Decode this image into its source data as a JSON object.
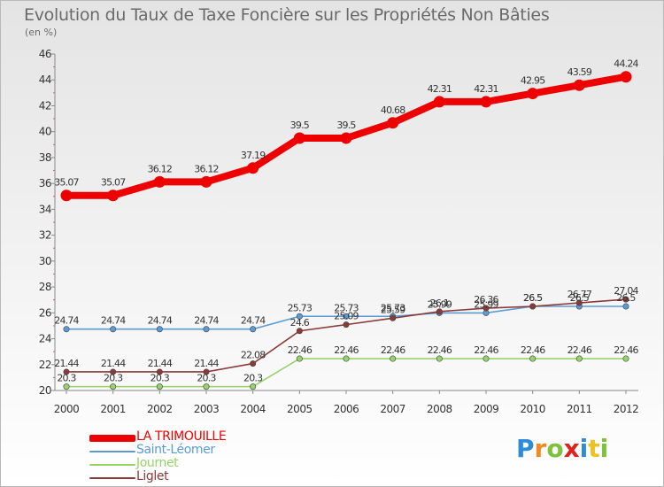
{
  "title": "Evolution du Taux de Taxe Foncière sur les Propriétés Non Bâties",
  "unit_label": "(en %)",
  "logo": {
    "text": "Proxiti",
    "letters": [
      "P",
      "r",
      "o",
      "x",
      "i",
      "t",
      "i"
    ],
    "colors": [
      "#2e8bd6",
      "#f08a24",
      "#7cc23a",
      "#e0221d",
      "#2e8bd6",
      "#f0c020",
      "#7cc23a"
    ]
  },
  "chart_data": {
    "type": "line",
    "title": "Evolution du Taux de Taxe Foncière sur les Propriétés Non Bâties",
    "ylabel": "(en %)",
    "xlabel": "",
    "x": [
      "2000",
      "2001",
      "2002",
      "2003",
      "2004",
      "2005",
      "2006",
      "2007",
      "2008",
      "2009",
      "2010",
      "2011",
      "2012"
    ],
    "ylim": [
      20,
      46
    ],
    "yticks": [
      20,
      22,
      24,
      26,
      28,
      30,
      32,
      34,
      36,
      38,
      40,
      42,
      44,
      46
    ],
    "grid": false,
    "legend_position": "bottom-left",
    "series": [
      {
        "name": "LA TRIMOUILLE",
        "color": "#ee0000",
        "style": "thick",
        "values": [
          35.07,
          35.07,
          36.12,
          36.12,
          37.19,
          39.5,
          39.5,
          40.68,
          42.31,
          42.31,
          42.95,
          43.59,
          44.24
        ],
        "labels": [
          "35.07",
          "35.07",
          "36.12",
          "36.12",
          "37.19",
          "39.5",
          "39.5",
          "40.68",
          "42.31",
          "42.31",
          "42.95",
          "43.59",
          "44.24"
        ]
      },
      {
        "name": "Saint-Léomer",
        "color": "#5b9bd5",
        "style": "thin",
        "values": [
          24.74,
          24.74,
          24.74,
          24.74,
          24.74,
          25.73,
          25.73,
          25.73,
          25.99,
          25.99,
          26.5,
          26.5,
          26.5
        ],
        "labels": [
          "24.74",
          "24.74",
          "24.74",
          "24.74",
          "24.74",
          "25.73",
          "25.73",
          "25.73",
          "25.99",
          "25.99",
          "26.5",
          "26.5",
          "26.5"
        ]
      },
      {
        "name": "Journet",
        "color": "#96d46a",
        "style": "thin",
        "values": [
          20.3,
          20.3,
          20.3,
          20.3,
          20.3,
          22.46,
          22.46,
          22.46,
          22.46,
          22.46,
          22.46,
          22.46,
          22.46
        ],
        "labels": [
          "20.3",
          "20.3",
          "20.3",
          "20.3",
          "20.3",
          "22.46",
          "22.46",
          "22.46",
          "22.46",
          "22.46",
          "22.46",
          "22.46",
          "22.46"
        ]
      },
      {
        "name": "Liglet",
        "color": "#8b3a3a",
        "style": "thin",
        "values": [
          21.44,
          21.44,
          21.44,
          21.44,
          22.08,
          24.6,
          25.09,
          25.59,
          26.1,
          26.36,
          26.5,
          26.77,
          27.04
        ],
        "labels": [
          "21.44",
          "21.44",
          "21.44",
          "21.44",
          "22.08",
          "24.6",
          "25.09",
          "25.59",
          "26.1",
          "26.36",
          "26.5",
          "26.77",
          "27.04"
        ]
      }
    ]
  }
}
